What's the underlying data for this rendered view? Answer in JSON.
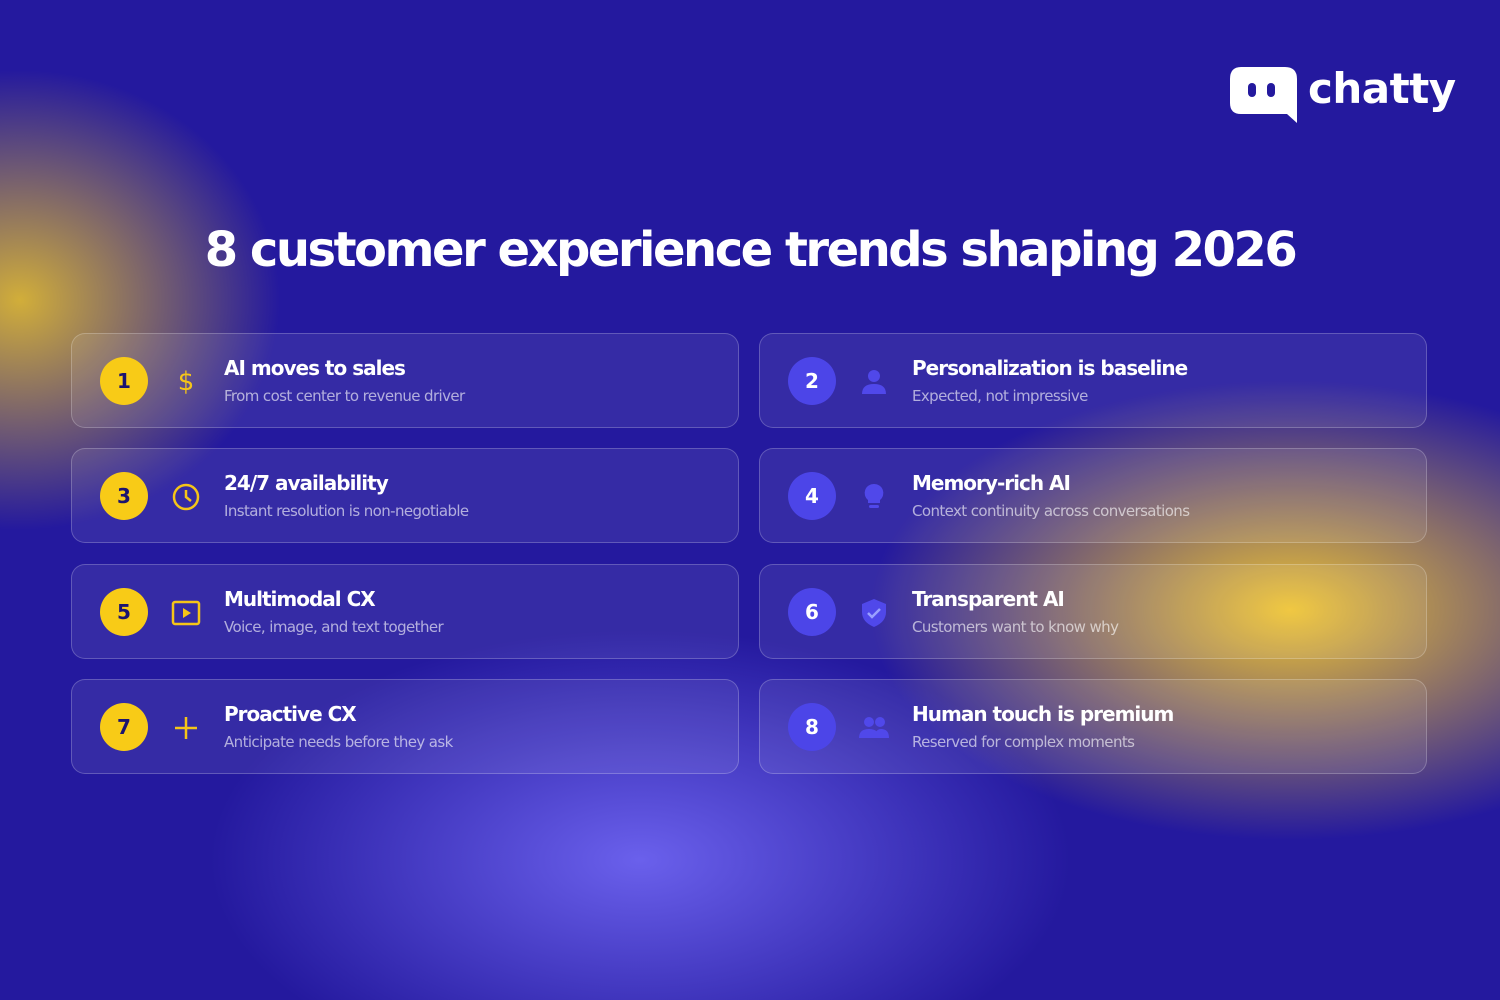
{
  "logo": {
    "text": "chatty"
  },
  "title": "8 customer experience trends shaping 2026",
  "items": [
    {
      "number": 1,
      "title": "AI moves to sales",
      "subtitle": "From cost center to revenue driver"
    },
    {
      "number": 2,
      "title": "Personalization is baseline",
      "subtitle": "Expected, not impressive"
    },
    {
      "number": 3,
      "title": "24/7 availability",
      "subtitle": "Instant resolution is non-negotiable"
    },
    {
      "number": 4,
      "title": "Memory-rich AI",
      "subtitle": "Context continuity across conversations"
    },
    {
      "number": 5,
      "title": "Multimodal CX",
      "subtitle": "Voice, image, and text together"
    },
    {
      "number": 6,
      "title": "Transparent AI",
      "subtitle": "Customers want to know why"
    },
    {
      "number": 7,
      "title": "Proactive CX",
      "subtitle": "Anticipate needs before they ask"
    },
    {
      "number": 8,
      "title": "Human touch is premium",
      "subtitle": "Reserved for complex moments"
    }
  ]
}
